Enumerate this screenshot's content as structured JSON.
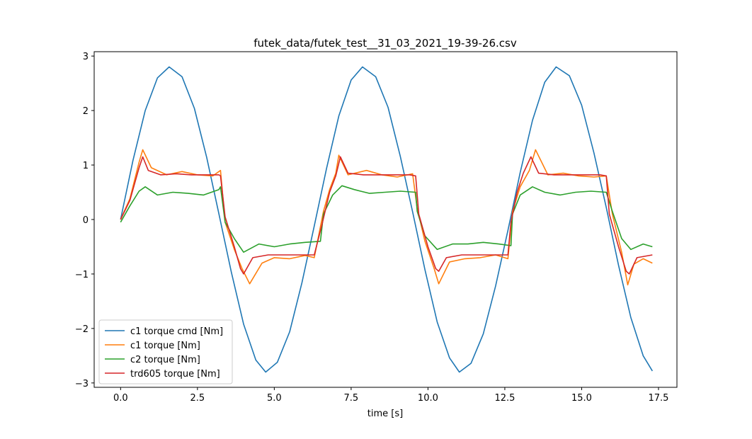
{
  "chart_data": {
    "type": "line",
    "title": "futek_data/futek_test__31_03_2021_19-39-26.csv",
    "xlabel": "time [s]",
    "ylabel": "",
    "xlim": [
      -0.86,
      18.1
    ],
    "ylim": [
      -3.08,
      3.08
    ],
    "xticks": [
      0.0,
      2.5,
      5.0,
      7.5,
      10.0,
      12.5,
      15.0,
      17.5
    ],
    "xtick_labels": [
      "0.0",
      "2.5",
      "5.0",
      "7.5",
      "10.0",
      "12.5",
      "15.0",
      "17.5"
    ],
    "yticks": [
      -3,
      -2,
      -1,
      0,
      1,
      2,
      3
    ],
    "ytick_labels": [
      "−3",
      "−2",
      "−1",
      "0",
      "1",
      "2",
      "3"
    ],
    "grid": false,
    "legend_position": "lower-left",
    "series": [
      {
        "name": "c1 torque cmd [Nm]",
        "color": "#1f77b4",
        "x": [
          0.0,
          0.4,
          0.8,
          1.2,
          1.58,
          2.0,
          2.4,
          2.8,
          3.2,
          3.6,
          4.0,
          4.4,
          4.72,
          5.1,
          5.5,
          5.9,
          6.3,
          6.7,
          7.1,
          7.5,
          7.87,
          8.3,
          8.7,
          9.1,
          9.5,
          9.9,
          10.3,
          10.7,
          11.02,
          11.4,
          11.8,
          12.2,
          12.6,
          13.0,
          13.4,
          13.8,
          14.17,
          14.6,
          15.0,
          15.4,
          15.8,
          16.2,
          16.6,
          17.0,
          17.3
        ],
        "y": [
          0.0,
          1.08,
          2.0,
          2.6,
          2.8,
          2.62,
          2.04,
          1.14,
          0.1,
          -0.96,
          -1.92,
          -2.58,
          -2.8,
          -2.62,
          -2.06,
          -1.16,
          -0.12,
          0.94,
          1.9,
          2.56,
          2.8,
          2.62,
          2.06,
          1.16,
          0.14,
          -0.92,
          -1.88,
          -2.54,
          -2.8,
          -2.64,
          -2.1,
          -1.22,
          -0.2,
          0.86,
          1.82,
          2.52,
          2.8,
          2.64,
          2.1,
          1.22,
          0.22,
          -0.84,
          -1.8,
          -2.5,
          -2.78
        ]
      },
      {
        "name": "c1 torque [Nm]",
        "color": "#ff7f0e",
        "x": [
          0.0,
          0.3,
          0.6,
          0.72,
          1.0,
          1.5,
          2.0,
          2.5,
          3.0,
          3.25,
          3.4,
          3.7,
          3.95,
          4.2,
          4.6,
          5.0,
          5.5,
          6.0,
          6.3,
          6.6,
          6.8,
          7.0,
          7.1,
          7.4,
          8.0,
          8.5,
          9.0,
          9.5,
          9.65,
          9.9,
          10.2,
          10.35,
          10.7,
          11.2,
          11.7,
          12.2,
          12.6,
          12.75,
          13.0,
          13.3,
          13.5,
          13.9,
          14.4,
          14.9,
          15.4,
          15.8,
          16.0,
          16.3,
          16.5,
          16.7,
          17.0,
          17.3
        ],
        "y": [
          0.0,
          0.38,
          1.05,
          1.28,
          0.95,
          0.82,
          0.88,
          0.82,
          0.8,
          0.9,
          -0.05,
          -0.55,
          -0.9,
          -1.18,
          -0.8,
          -0.7,
          -0.72,
          -0.66,
          -0.7,
          0.15,
          0.55,
          0.85,
          1.18,
          0.82,
          0.9,
          0.82,
          0.78,
          0.84,
          0.2,
          -0.4,
          -0.9,
          -1.18,
          -0.78,
          -0.72,
          -0.7,
          -0.65,
          -0.72,
          0.15,
          0.6,
          0.9,
          1.28,
          0.82,
          0.85,
          0.8,
          0.78,
          0.8,
          0.1,
          -0.6,
          -1.2,
          -0.82,
          -0.72,
          -0.8
        ]
      },
      {
        "name": "c2 torque [Nm]",
        "color": "#2ca02c",
        "x": [
          0.0,
          0.3,
          0.6,
          0.8,
          1.2,
          1.7,
          2.2,
          2.7,
          3.2,
          3.25,
          3.4,
          3.7,
          4.0,
          4.5,
          5.0,
          5.5,
          6.0,
          6.5,
          6.6,
          6.9,
          7.2,
          7.6,
          8.1,
          8.6,
          9.1,
          9.6,
          9.65,
          9.9,
          10.3,
          10.8,
          11.3,
          11.8,
          12.3,
          12.7,
          12.75,
          13.0,
          13.4,
          13.8,
          14.3,
          14.8,
          15.3,
          15.8,
          16.0,
          16.3,
          16.6,
          17.0,
          17.3
        ],
        "y": [
          -0.05,
          0.25,
          0.52,
          0.6,
          0.45,
          0.5,
          0.48,
          0.45,
          0.55,
          0.6,
          -0.05,
          -0.35,
          -0.6,
          -0.45,
          -0.5,
          -0.45,
          -0.42,
          -0.4,
          0.1,
          0.45,
          0.62,
          0.55,
          0.48,
          0.5,
          0.52,
          0.5,
          0.15,
          -0.3,
          -0.55,
          -0.45,
          -0.45,
          -0.42,
          -0.45,
          -0.48,
          0.1,
          0.45,
          0.6,
          0.5,
          0.45,
          0.5,
          0.52,
          0.5,
          0.15,
          -0.35,
          -0.55,
          -0.45,
          -0.5
        ]
      },
      {
        "name": "trd605 torque [Nm]",
        "color": "#d62728",
        "x": [
          0.0,
          0.3,
          0.6,
          0.72,
          0.9,
          1.3,
          1.8,
          2.3,
          2.8,
          3.2,
          3.25,
          3.4,
          3.7,
          3.9,
          4.0,
          4.3,
          4.8,
          5.3,
          5.8,
          6.3,
          6.55,
          6.8,
          7.0,
          7.15,
          7.4,
          7.9,
          8.4,
          8.9,
          9.4,
          9.6,
          9.7,
          10.0,
          10.25,
          10.35,
          10.6,
          11.1,
          11.6,
          12.1,
          12.6,
          12.7,
          12.9,
          13.1,
          13.35,
          13.6,
          14.1,
          14.6,
          15.1,
          15.6,
          15.8,
          15.9,
          16.2,
          16.45,
          16.55,
          16.8,
          17.3
        ],
        "y": [
          0.0,
          0.35,
          0.95,
          1.15,
          0.9,
          0.82,
          0.84,
          0.82,
          0.82,
          0.82,
          0.8,
          0.05,
          -0.5,
          -0.9,
          -1.0,
          -0.7,
          -0.65,
          -0.65,
          -0.65,
          -0.65,
          -0.1,
          0.5,
          0.8,
          1.15,
          0.85,
          0.82,
          0.82,
          0.82,
          0.82,
          0.8,
          0.1,
          -0.5,
          -0.9,
          -0.95,
          -0.7,
          -0.65,
          -0.65,
          -0.65,
          -0.65,
          -0.05,
          0.5,
          0.85,
          1.15,
          0.85,
          0.82,
          0.82,
          0.82,
          0.82,
          0.8,
          0.1,
          -0.5,
          -0.95,
          -1.0,
          -0.7,
          -0.65
        ]
      }
    ]
  }
}
